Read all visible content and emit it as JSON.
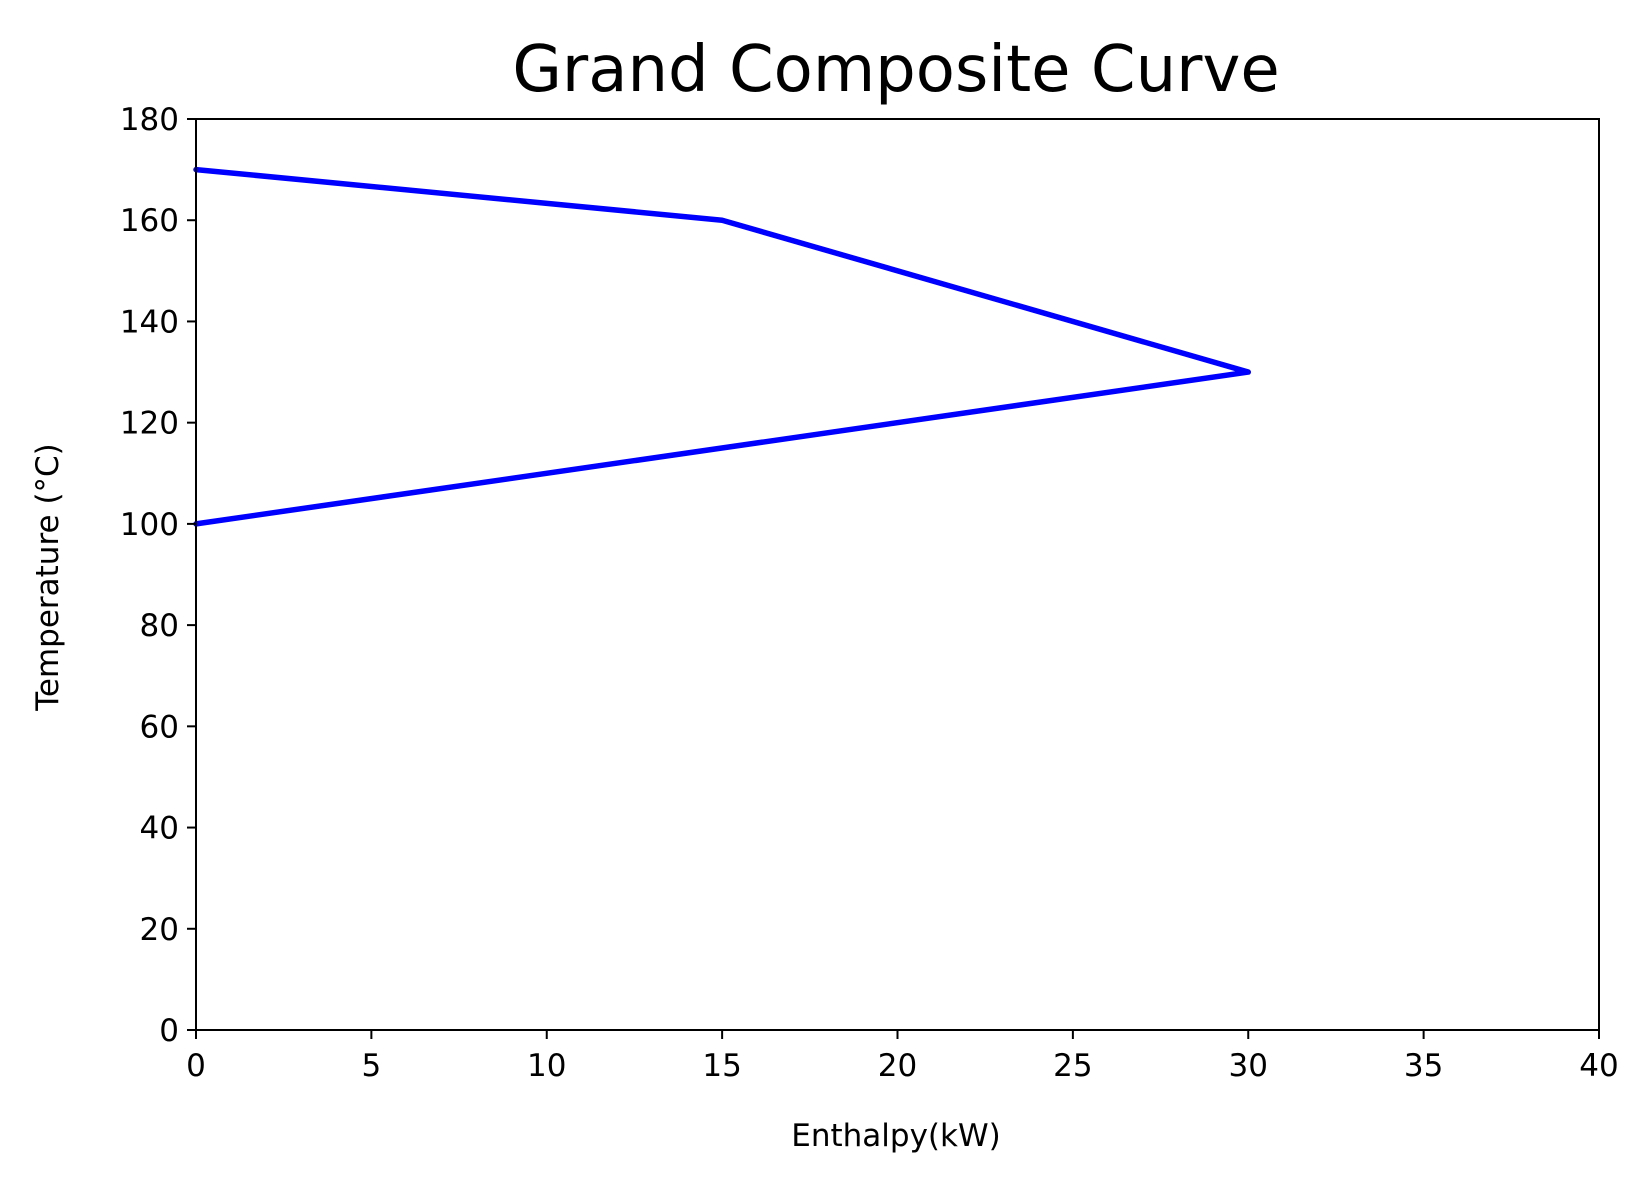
{
  "chart_data": {
    "type": "line",
    "title": "Grand Composite Curve",
    "xlabel": "Enthalpy(kW)",
    "ylabel": "Temperature (°C)",
    "xlim": [
      0,
      40
    ],
    "ylim": [
      0,
      180
    ],
    "xticks": [
      0,
      5,
      10,
      15,
      20,
      25,
      30,
      35,
      40
    ],
    "yticks": [
      0,
      20,
      40,
      60,
      80,
      100,
      120,
      140,
      160,
      180
    ],
    "grid": false,
    "series": [
      {
        "color": "#0000ff",
        "x": [
          0,
          15,
          30,
          0
        ],
        "y": [
          170,
          160,
          130,
          100
        ]
      }
    ]
  }
}
